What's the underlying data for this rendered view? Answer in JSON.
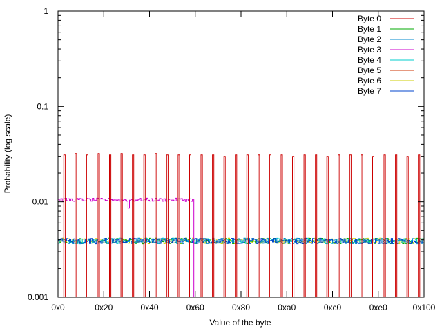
{
  "chart_data": {
    "type": "line",
    "xlabel": "Value of the byte",
    "ylabel": "Probability (log scale)",
    "y_scale": "log",
    "xlim": [
      0,
      256
    ],
    "ylim": [
      0.001,
      1
    ],
    "x_ticks": [
      {
        "value": 0,
        "label": "0x0"
      },
      {
        "value": 32,
        "label": "0x20"
      },
      {
        "value": 64,
        "label": "0x40"
      },
      {
        "value": 96,
        "label": "0x60"
      },
      {
        "value": 128,
        "label": "0x80"
      },
      {
        "value": 160,
        "label": "0xa0"
      },
      {
        "value": 192,
        "label": "0xc0"
      },
      {
        "value": 224,
        "label": "0xe0"
      },
      {
        "value": 256,
        "label": "0x100"
      }
    ],
    "y_ticks": [
      {
        "value": 0.001,
        "label": "0.001"
      },
      {
        "value": 0.01,
        "label": "0.01"
      },
      {
        "value": 0.1,
        "label": "0.1"
      },
      {
        "value": 1,
        "label": "1"
      }
    ],
    "legend_position": "top-right",
    "grid": false,
    "series": [
      {
        "name": "Byte 0",
        "color": "#cc0000",
        "description": "Spikes at x = 4,12,20,...,252 (every 8 values); zero elsewhere",
        "spike_x": [
          4,
          12,
          20,
          28,
          36,
          44,
          52,
          60,
          68,
          76,
          84,
          92,
          100,
          108,
          116,
          124,
          132,
          140,
          148,
          156,
          164,
          172,
          180,
          188,
          196,
          204,
          212,
          220,
          228,
          236,
          244,
          252
        ],
        "spike_y": [
          0.031,
          0.032,
          0.031,
          0.032,
          0.031,
          0.032,
          0.031,
          0.031,
          0.032,
          0.031,
          0.031,
          0.031,
          0.031,
          0.031,
          0.03,
          0.031,
          0.031,
          0.031,
          0.031,
          0.031,
          0.03,
          0.031,
          0.031,
          0.03,
          0.031,
          0.031,
          0.031,
          0.03,
          0.031,
          0.031,
          0.03,
          0.031
        ]
      },
      {
        "name": "Byte 1",
        "color": "#00aa00",
        "approx_value": 0.0039,
        "x_range": [
          0,
          256
        ]
      },
      {
        "name": "Byte 2",
        "color": "#0088cc",
        "approx_value": 0.0039,
        "x_range": [
          0,
          256
        ]
      },
      {
        "name": "Byte 3",
        "color": "#cc00cc",
        "approx_value": 0.0105,
        "x_range": [
          0,
          95
        ]
      },
      {
        "name": "Byte 4",
        "color": "#00cccc",
        "approx_value": 0.0039,
        "x_range": [
          0,
          256
        ]
      },
      {
        "name": "Byte 5",
        "color": "#cc3300",
        "approx_value": 0.031,
        "x_range": [
          0,
          256
        ]
      },
      {
        "name": "Byte 6",
        "color": "#cccc00",
        "approx_value": 0.0039,
        "x_range": [
          0,
          256
        ]
      },
      {
        "name": "Byte 7",
        "color": "#0044cc",
        "approx_value": 0.0039,
        "x_range": [
          0,
          256
        ]
      }
    ]
  }
}
